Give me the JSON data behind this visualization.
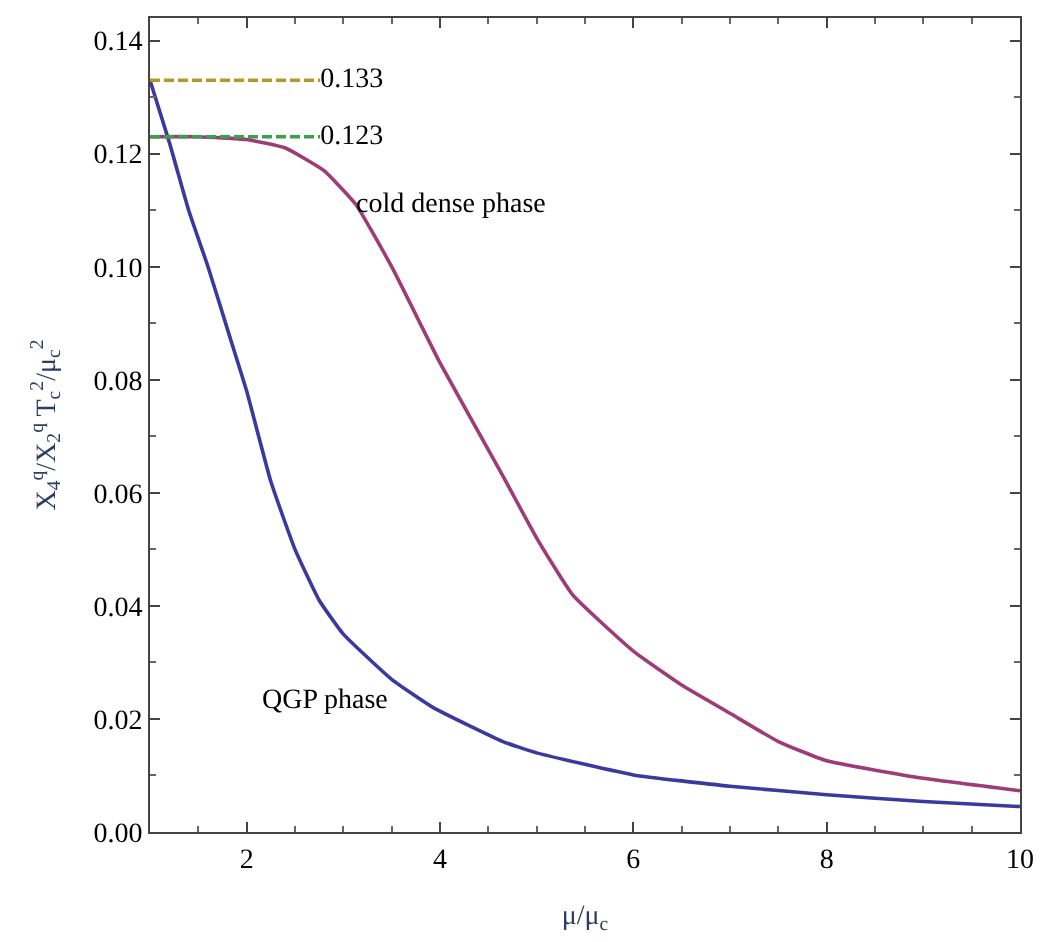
{
  "chart_data": {
    "type": "line",
    "xlabel": "μ/μ$_{c}$",
    "ylabel": "X$_{4}$$^{q}$/X$_{2}$$^{q}$ T$_{c}$$^{2}$/μ$_{c}$$^{2}$",
    "xlim": [
      1,
      10
    ],
    "xticks": [
      2,
      4,
      6,
      8,
      10
    ],
    "ylim": [
      0,
      0.144
    ],
    "yticks": [
      {
        "value": 0,
        "label": "0.00"
      },
      0.02,
      0.04,
      0.06,
      0.08,
      {
        "value": 0.1,
        "label": "0.10"
      },
      0.12,
      0.14
    ],
    "series": [
      {
        "color": "#3a3a9e",
        "x": [
          1,
          1.2,
          1.4,
          1.6,
          1.8,
          2.0,
          2.25,
          2.5,
          2.75,
          3,
          3.5,
          3.93,
          4.65,
          5,
          6,
          7,
          8,
          9,
          10
        ],
        "values": [
          0.133,
          0.122,
          0.11,
          0.1,
          0.089,
          0.078,
          0.062,
          0.05,
          0.041,
          0.035,
          0.027,
          0.022,
          0.016,
          0.014,
          0.0101,
          0.0081,
          0.0066,
          0.0054,
          0.0045
        ]
      },
      {
        "color": "#9e3c78",
        "x": [
          1,
          1.5,
          2,
          2.4,
          2.8,
          3.13,
          3.5,
          4,
          4.65,
          5,
          5.37,
          6,
          6.5,
          7,
          7.5,
          8,
          9,
          10
        ],
        "values": [
          0.123,
          0.123,
          0.1225,
          0.121,
          0.117,
          0.111,
          0.1,
          0.083,
          0.063,
          0.052,
          0.042,
          0.032,
          0.026,
          0.021,
          0.016,
          0.0126,
          0.0095,
          0.0073
        ]
      },
      {
        "name": "0.133",
        "color": "#b8962a",
        "line_style": "dashed",
        "x": [
          1,
          2.76
        ],
        "values": [
          0.133,
          0.133
        ]
      },
      {
        "name": "0.123",
        "color": "#3aa04a",
        "line_style": "dashed",
        "x": [
          1,
          2.76
        ],
        "values": [
          0.123,
          0.123
        ]
      }
    ],
    "annotations": [
      "cold dense phase",
      "QGP phase"
    ]
  }
}
